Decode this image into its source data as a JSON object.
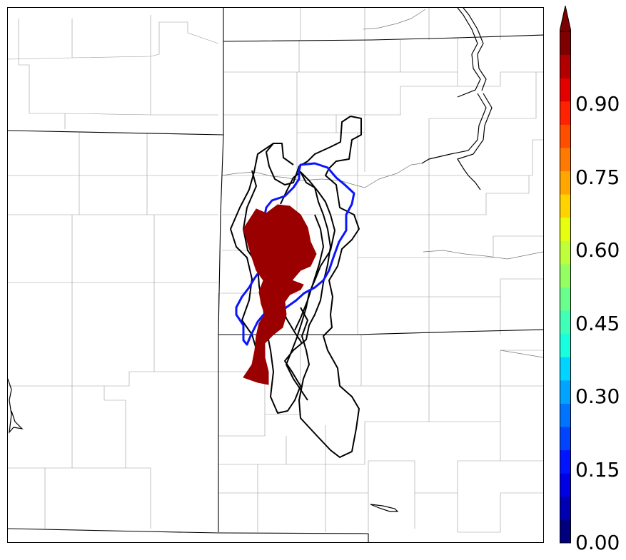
{
  "colorbar": {
    "ticks": [
      {
        "value": 0.0,
        "label": "0.00"
      },
      {
        "value": 0.15,
        "label": "0.15"
      },
      {
        "value": 0.3,
        "label": "0.30"
      },
      {
        "value": 0.45,
        "label": "0.45"
      },
      {
        "value": 0.6,
        "label": "0.60"
      },
      {
        "value": 0.75,
        "label": "0.75"
      },
      {
        "value": 0.9,
        "label": "0.90"
      }
    ],
    "levels": [
      "#00007f",
      "#0000b2",
      "#0000e5",
      "#0014ff",
      "#0044ff",
      "#0074ff",
      "#00a4ff",
      "#00d4ff",
      "#17ffdf",
      "#40ffb7",
      "#6aff8d",
      "#94ff63",
      "#beff39",
      "#e7ff0f",
      "#ffd300",
      "#ffa700",
      "#ff7a00",
      "#ff4e00",
      "#ff2200",
      "#e50000",
      "#b20000",
      "#7f0000"
    ],
    "extend": "max"
  },
  "legend_colors": {
    "probability_fill": "#9b0000",
    "observed_outline": "#0a14ff",
    "ensemble_members": "#000000",
    "boundaries": "#000000",
    "counties": "#9a9a9a"
  }
}
